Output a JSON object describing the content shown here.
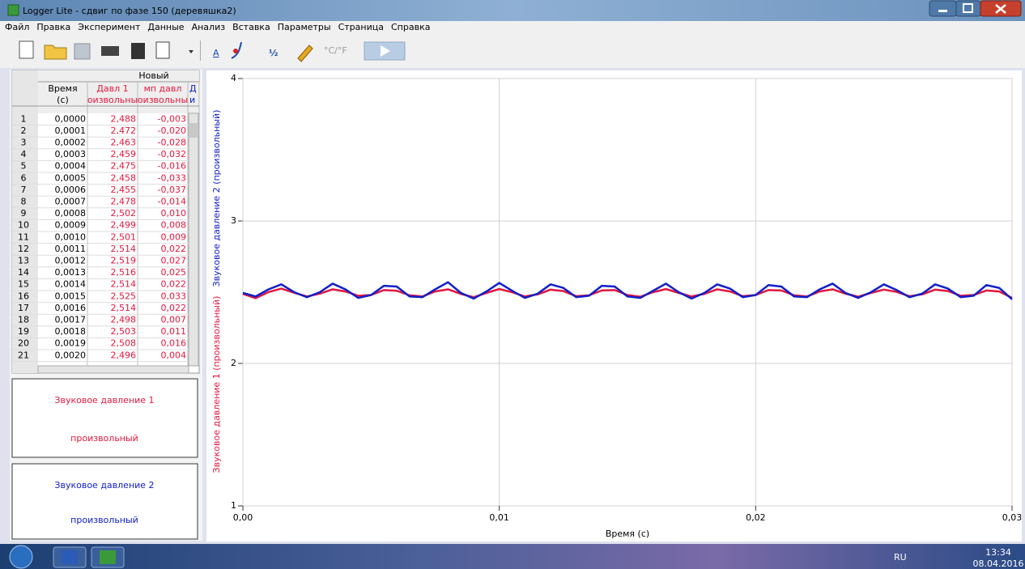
{
  "window": {
    "title": "Logger Lite - сдвиг по фазе 150 (деревяшка2)"
  },
  "menu": [
    "Файл",
    "Правка",
    "Эксперимент",
    "Данные",
    "Анализ",
    "Вставка",
    "Параметры",
    "Страница",
    "Справка"
  ],
  "toolbar_labels": [
    "A",
    "°C/°F"
  ],
  "table": {
    "group_header": "Новый",
    "columns": [
      {
        "top": "Время",
        "bottom": "(с)"
      },
      {
        "top": "Давл 1",
        "bottom": "оизвольны"
      },
      {
        "top": "мп давл",
        "bottom": "оизвольны"
      },
      {
        "top": "Д",
        "bottom": "и"
      }
    ],
    "rows": [
      [
        "1",
        "0,0000",
        "2,488",
        "-0,003"
      ],
      [
        "2",
        "0,0001",
        "2,472",
        "-0,020"
      ],
      [
        "3",
        "0,0002",
        "2,463",
        "-0,028"
      ],
      [
        "4",
        "0,0003",
        "2,459",
        "-0,032"
      ],
      [
        "5",
        "0,0004",
        "2,475",
        "-0,016"
      ],
      [
        "6",
        "0,0005",
        "2,458",
        "-0,033"
      ],
      [
        "7",
        "0,0006",
        "2,455",
        "-0,037"
      ],
      [
        "8",
        "0,0007",
        "2,478",
        "-0,014"
      ],
      [
        "9",
        "0,0008",
        "2,502",
        "0,010"
      ],
      [
        "10",
        "0,0009",
        "2,499",
        "0,008"
      ],
      [
        "11",
        "0,0010",
        "2,501",
        "0,009"
      ],
      [
        "12",
        "0,0011",
        "2,514",
        "0,022"
      ],
      [
        "13",
        "0,0012",
        "2,519",
        "0,027"
      ],
      [
        "14",
        "0,0013",
        "2,516",
        "0,025"
      ],
      [
        "15",
        "0,0014",
        "2,514",
        "0,022"
      ],
      [
        "16",
        "0,0015",
        "2,525",
        "0,033"
      ],
      [
        "17",
        "0,0016",
        "2,514",
        "0,022"
      ],
      [
        "18",
        "0,0017",
        "2,498",
        "0,007"
      ],
      [
        "19",
        "0,0018",
        "2,503",
        "0,011"
      ],
      [
        "20",
        "0,0019",
        "2,508",
        "0,016"
      ],
      [
        "21",
        "0,0020",
        "2,496",
        "0,004"
      ]
    ]
  },
  "meters": [
    {
      "unit": "произвольный"
    },
    {
      "unit": "произвольный"
    }
  ],
  "chart_data": {
    "type": "line",
    "xlabel": "Время (с)",
    "ylabels": [
      "Звуковое давление 1 (произвольный)",
      "Звуковое давление 2 (произвольный)"
    ],
    "xlim": [
      0,
      0.03
    ],
    "ylim": [
      1,
      4
    ],
    "xticks": [
      {
        "value": 0,
        "label": "0,00"
      },
      {
        "value": 0.01,
        "label": "0,01"
      },
      {
        "value": 0.02,
        "label": "0,02"
      },
      {
        "value": 0.03,
        "label": "0,03"
      }
    ],
    "yticks": [
      1,
      2,
      3,
      4
    ],
    "grid": true,
    "x": [
      0,
      0.0005,
      0.001,
      0.0015,
      0.002,
      0.0025,
      0.003,
      0.0035,
      0.004,
      0.0045,
      0.005,
      0.0055,
      0.006,
      0.0065,
      0.007,
      0.0075,
      0.008,
      0.0085,
      0.009,
      0.0095,
      0.01,
      0.0105,
      0.011,
      0.0115,
      0.012,
      0.0125,
      0.013,
      0.0135,
      0.014,
      0.0145,
      0.015,
      0.0155,
      0.016,
      0.0165,
      0.017,
      0.0175,
      0.018,
      0.0185,
      0.019,
      0.0195,
      0.02,
      0.0205,
      0.021,
      0.0215,
      0.022,
      0.0225,
      0.023,
      0.0235,
      0.024,
      0.0245,
      0.025,
      0.0255,
      0.026,
      0.0265,
      0.027,
      0.0275,
      0.028,
      0.0285,
      0.029,
      0.0295,
      0.03
    ],
    "series": [
      {
        "name": "Звуковое давление 1",
        "color": "#e3173e",
        "values": [
          2.488,
          2.458,
          2.501,
          2.525,
          2.496,
          2.47,
          2.49,
          2.52,
          2.505,
          2.475,
          2.48,
          2.515,
          2.51,
          2.478,
          2.47,
          2.505,
          2.52,
          2.488,
          2.465,
          2.495,
          2.522,
          2.5,
          2.47,
          2.485,
          2.518,
          2.508,
          2.472,
          2.478,
          2.512,
          2.515,
          2.48,
          2.468,
          2.5,
          2.522,
          2.495,
          2.47,
          2.488,
          2.52,
          2.505,
          2.472,
          2.48,
          2.515,
          2.512,
          2.478,
          2.47,
          2.505,
          2.52,
          2.49,
          2.468,
          2.495,
          2.518,
          2.502,
          2.472,
          2.485,
          2.518,
          2.508,
          2.475,
          2.48,
          2.512,
          2.505,
          2.46
        ]
      },
      {
        "name": "Звуковое давление 2",
        "color": "#1020c8",
        "values": [
          2.495,
          2.47,
          2.52,
          2.555,
          2.5,
          2.465,
          2.5,
          2.56,
          2.52,
          2.46,
          2.48,
          2.545,
          2.54,
          2.47,
          2.465,
          2.52,
          2.57,
          2.495,
          2.455,
          2.505,
          2.565,
          2.51,
          2.46,
          2.49,
          2.555,
          2.53,
          2.465,
          2.475,
          2.545,
          2.54,
          2.47,
          2.46,
          2.51,
          2.56,
          2.5,
          2.455,
          2.495,
          2.555,
          2.525,
          2.465,
          2.48,
          2.55,
          2.54,
          2.47,
          2.465,
          2.52,
          2.56,
          2.495,
          2.46,
          2.5,
          2.555,
          2.515,
          2.465,
          2.49,
          2.555,
          2.525,
          2.465,
          2.475,
          2.55,
          2.53,
          2.45
        ]
      }
    ]
  },
  "taskbar": {
    "language": "RU",
    "time": "13:34",
    "date": "08.04.2016"
  }
}
